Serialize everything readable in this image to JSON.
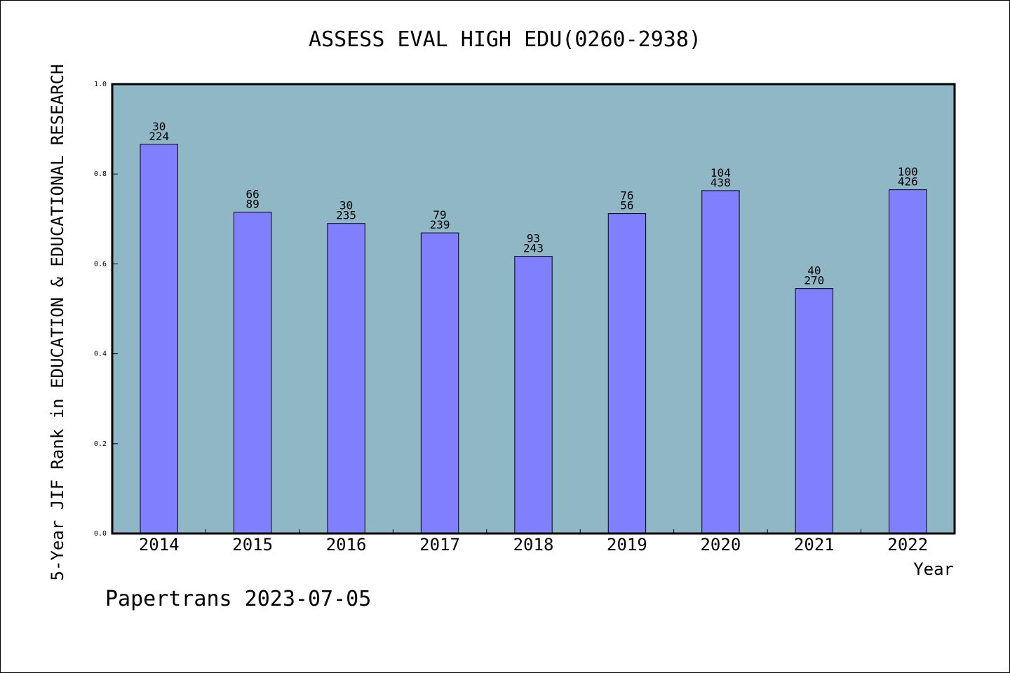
{
  "chart_data": {
    "type": "bar",
    "title": "ASSESS EVAL HIGH EDU(0260-2938)",
    "ylabel": "5-Year JIF Rank in EDUCATION & EDUCATIONAL RESEARCH",
    "xlabel": "Year",
    "ylim": [
      0,
      1.0
    ],
    "yticks": [
      "0.0",
      "0.2",
      "0.4",
      "0.6",
      "0.8",
      "1.0"
    ],
    "categories": [
      "2014",
      "2015",
      "2016",
      "2017",
      "2018",
      "2019",
      "2020",
      "2021",
      "2022"
    ],
    "values": [
      0.866,
      0.715,
      0.69,
      0.669,
      0.617,
      0.712,
      0.763,
      0.545,
      0.765
    ],
    "rank_labels": [
      "30",
      "66",
      "30",
      "79",
      "93",
      "76",
      "104",
      "40",
      "100"
    ],
    "total_labels": [
      "224",
      "89",
      "235",
      "239",
      "243",
      "56",
      "438",
      "270",
      "426"
    ],
    "colors": {
      "plot_background": "#8fb7c6",
      "bar_fill": "#8080ff",
      "axis": "#000000"
    },
    "grid": false
  },
  "footer": "Papertrans 2023-07-05"
}
